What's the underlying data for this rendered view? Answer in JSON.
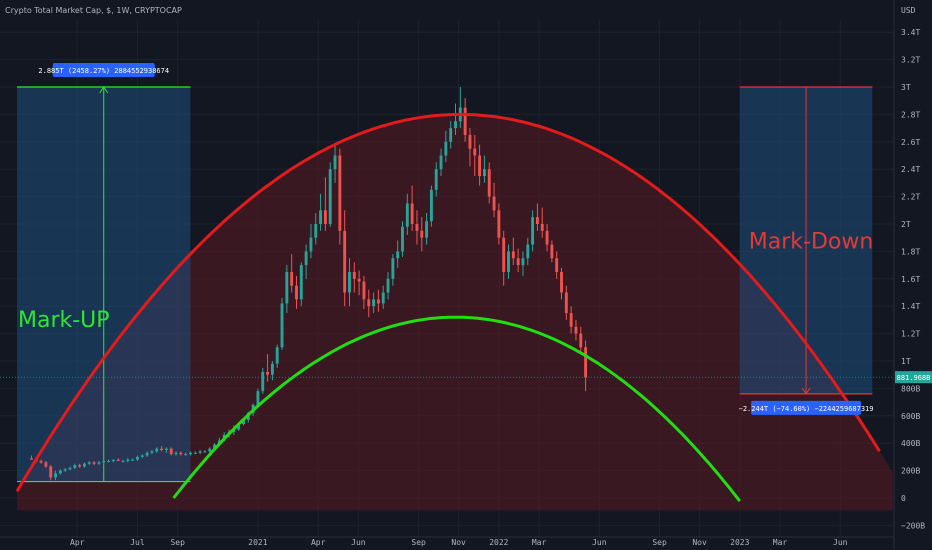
{
  "chart_data": {
    "type": "candlestick",
    "title": "Crypto Total Market Cap, $, 1W, CRYPTOCAP",
    "y_axis_unit": "USD",
    "y_ticks": [
      {
        "label": "3.4T",
        "value": 3.4
      },
      {
        "label": "3.2T",
        "value": 3.2
      },
      {
        "label": "3T",
        "value": 3.0
      },
      {
        "label": "2.8T",
        "value": 2.8
      },
      {
        "label": "2.6T",
        "value": 2.6
      },
      {
        "label": "2.4T",
        "value": 2.4
      },
      {
        "label": "2.2T",
        "value": 2.2
      },
      {
        "label": "2T",
        "value": 2.0
      },
      {
        "label": "1.8T",
        "value": 1.8
      },
      {
        "label": "1.6T",
        "value": 1.6
      },
      {
        "label": "1.4T",
        "value": 1.4
      },
      {
        "label": "1.2T",
        "value": 1.2
      },
      {
        "label": "1T",
        "value": 1.0
      },
      {
        "label": "800B",
        "value": 0.8
      },
      {
        "label": "600B",
        "value": 0.6
      },
      {
        "label": "400B",
        "value": 0.4
      },
      {
        "label": "200B",
        "value": 0.2
      },
      {
        "label": "0",
        "value": 0.0
      },
      {
        "label": "−200B",
        "value": -0.2
      }
    ],
    "x_ticks": [
      {
        "label": "Apr",
        "t": 2020.25
      },
      {
        "label": "Jul",
        "t": 2020.5
      },
      {
        "label": "Sep",
        "t": 2020.667
      },
      {
        "label": "2021",
        "t": 2021.0
      },
      {
        "label": "Apr",
        "t": 2021.25
      },
      {
        "label": "Jun",
        "t": 2021.417
      },
      {
        "label": "Sep",
        "t": 2021.667
      },
      {
        "label": "Nov",
        "t": 2021.833
      },
      {
        "label": "2022",
        "t": 2022.0
      },
      {
        "label": "Mar",
        "t": 2022.167
      },
      {
        "label": "Jun",
        "t": 2022.417
      },
      {
        "label": "Sep",
        "t": 2022.667
      },
      {
        "label": "Nov",
        "t": 2022.833
      },
      {
        "label": "2023",
        "t": 2023.0
      },
      {
        "label": "Mar",
        "t": 2023.167
      },
      {
        "label": "Jun",
        "t": 2023.417
      }
    ],
    "candles": [
      [
        2020.06,
        0.29,
        0.31,
        0.28,
        0.28
      ],
      [
        2020.08,
        0.28,
        0.29,
        0.26,
        0.27
      ],
      [
        2020.1,
        0.27,
        0.28,
        0.25,
        0.26
      ],
      [
        2020.12,
        0.26,
        0.27,
        0.22,
        0.23
      ],
      [
        2020.14,
        0.23,
        0.24,
        0.13,
        0.15
      ],
      [
        2020.16,
        0.15,
        0.2,
        0.13,
        0.18
      ],
      [
        2020.18,
        0.18,
        0.21,
        0.17,
        0.2
      ],
      [
        2020.2,
        0.2,
        0.22,
        0.19,
        0.21
      ],
      [
        2020.22,
        0.21,
        0.23,
        0.2,
        0.22
      ],
      [
        2020.24,
        0.22,
        0.25,
        0.21,
        0.24
      ],
      [
        2020.26,
        0.24,
        0.25,
        0.22,
        0.23
      ],
      [
        2020.28,
        0.23,
        0.26,
        0.22,
        0.25
      ],
      [
        2020.3,
        0.25,
        0.27,
        0.24,
        0.26
      ],
      [
        2020.32,
        0.26,
        0.27,
        0.24,
        0.25
      ],
      [
        2020.34,
        0.25,
        0.27,
        0.24,
        0.26
      ],
      [
        2020.36,
        0.26,
        0.28,
        0.25,
        0.27
      ],
      [
        2020.38,
        0.27,
        0.28,
        0.26,
        0.27
      ],
      [
        2020.4,
        0.27,
        0.28,
        0.26,
        0.28
      ],
      [
        2020.42,
        0.28,
        0.29,
        0.27,
        0.27
      ],
      [
        2020.44,
        0.27,
        0.28,
        0.26,
        0.27
      ],
      [
        2020.46,
        0.27,
        0.29,
        0.26,
        0.28
      ],
      [
        2020.48,
        0.28,
        0.29,
        0.27,
        0.28
      ],
      [
        2020.5,
        0.28,
        0.31,
        0.27,
        0.3
      ],
      [
        2020.52,
        0.3,
        0.32,
        0.29,
        0.31
      ],
      [
        2020.54,
        0.31,
        0.34,
        0.3,
        0.33
      ],
      [
        2020.56,
        0.33,
        0.35,
        0.32,
        0.34
      ],
      [
        2020.58,
        0.34,
        0.37,
        0.33,
        0.36
      ],
      [
        2020.6,
        0.36,
        0.38,
        0.34,
        0.35
      ],
      [
        2020.62,
        0.35,
        0.37,
        0.33,
        0.36
      ],
      [
        2020.64,
        0.36,
        0.37,
        0.31,
        0.32
      ],
      [
        2020.66,
        0.32,
        0.34,
        0.31,
        0.33
      ],
      [
        2020.68,
        0.33,
        0.34,
        0.31,
        0.32
      ],
      [
        2020.7,
        0.32,
        0.33,
        0.31,
        0.32
      ],
      [
        2020.72,
        0.32,
        0.34,
        0.31,
        0.33
      ],
      [
        2020.74,
        0.33,
        0.34,
        0.32,
        0.33
      ],
      [
        2020.76,
        0.33,
        0.35,
        0.32,
        0.34
      ],
      [
        2020.78,
        0.34,
        0.35,
        0.33,
        0.34
      ],
      [
        2020.8,
        0.34,
        0.37,
        0.33,
        0.36
      ],
      [
        2020.82,
        0.36,
        0.4,
        0.35,
        0.39
      ],
      [
        2020.84,
        0.39,
        0.44,
        0.38,
        0.42
      ],
      [
        2020.86,
        0.42,
        0.48,
        0.41,
        0.46
      ],
      [
        2020.88,
        0.46,
        0.5,
        0.44,
        0.48
      ],
      [
        2020.9,
        0.48,
        0.53,
        0.46,
        0.5
      ],
      [
        2020.92,
        0.5,
        0.55,
        0.49,
        0.54
      ],
      [
        2020.94,
        0.54,
        0.58,
        0.53,
        0.57
      ],
      [
        2020.96,
        0.57,
        0.63,
        0.55,
        0.62
      ],
      [
        2020.98,
        0.62,
        0.69,
        0.6,
        0.68
      ],
      [
        2021.0,
        0.68,
        0.8,
        0.66,
        0.78
      ],
      [
        2021.02,
        0.78,
        0.95,
        0.76,
        0.92
      ],
      [
        2021.04,
        0.92,
        1.05,
        0.85,
        0.9
      ],
      [
        2021.06,
        0.9,
        1.0,
        0.86,
        0.98
      ],
      [
        2021.08,
        0.98,
        1.12,
        0.95,
        1.1
      ],
      [
        2021.1,
        1.1,
        1.46,
        1.08,
        1.42
      ],
      [
        2021.12,
        1.42,
        1.7,
        1.35,
        1.65
      ],
      [
        2021.14,
        1.65,
        1.78,
        1.5,
        1.55
      ],
      [
        2021.16,
        1.55,
        1.62,
        1.38,
        1.45
      ],
      [
        2021.18,
        1.45,
        1.72,
        1.4,
        1.7
      ],
      [
        2021.2,
        1.7,
        1.85,
        1.6,
        1.8
      ],
      [
        2021.22,
        1.8,
        2.0,
        1.75,
        1.9
      ],
      [
        2021.24,
        1.9,
        2.08,
        1.85,
        2.0
      ],
      [
        2021.26,
        2.0,
        2.22,
        1.95,
        2.1
      ],
      [
        2021.28,
        2.1,
        2.34,
        1.95,
        2.0
      ],
      [
        2021.3,
        2.0,
        2.45,
        1.98,
        2.4
      ],
      [
        2021.32,
        2.4,
        2.58,
        2.3,
        2.5
      ],
      [
        2021.34,
        2.5,
        2.55,
        1.85,
        1.95
      ],
      [
        2021.36,
        1.95,
        2.1,
        1.4,
        1.5
      ],
      [
        2021.38,
        1.5,
        1.75,
        1.4,
        1.65
      ],
      [
        2021.4,
        1.65,
        1.72,
        1.5,
        1.6
      ],
      [
        2021.42,
        1.6,
        1.66,
        1.48,
        1.58
      ],
      [
        2021.44,
        1.58,
        1.62,
        1.38,
        1.45
      ],
      [
        2021.46,
        1.45,
        1.52,
        1.32,
        1.4
      ],
      [
        2021.48,
        1.4,
        1.5,
        1.35,
        1.45
      ],
      [
        2021.5,
        1.45,
        1.52,
        1.36,
        1.42
      ],
      [
        2021.52,
        1.42,
        1.55,
        1.38,
        1.5
      ],
      [
        2021.54,
        1.5,
        1.65,
        1.45,
        1.6
      ],
      [
        2021.56,
        1.6,
        1.78,
        1.55,
        1.75
      ],
      [
        2021.58,
        1.75,
        1.88,
        1.68,
        1.8
      ],
      [
        2021.6,
        1.8,
        2.02,
        1.76,
        1.98
      ],
      [
        2021.62,
        1.98,
        2.22,
        1.92,
        2.15
      ],
      [
        2021.64,
        2.15,
        2.28,
        1.95,
        2.0
      ],
      [
        2021.66,
        2.0,
        2.1,
        1.85,
        1.95
      ],
      [
        2021.68,
        1.95,
        2.05,
        1.8,
        1.9
      ],
      [
        2021.7,
        1.9,
        2.08,
        1.85,
        2.02
      ],
      [
        2021.72,
        2.02,
        2.28,
        1.98,
        2.25
      ],
      [
        2021.74,
        2.25,
        2.45,
        2.2,
        2.4
      ],
      [
        2021.76,
        2.4,
        2.55,
        2.35,
        2.5
      ],
      [
        2021.78,
        2.5,
        2.68,
        2.45,
        2.6
      ],
      [
        2021.8,
        2.6,
        2.75,
        2.55,
        2.7
      ],
      [
        2021.82,
        2.7,
        2.88,
        2.65,
        2.75
      ],
      [
        2021.84,
        2.75,
        3.0,
        2.7,
        2.85
      ],
      [
        2021.86,
        2.85,
        2.92,
        2.6,
        2.65
      ],
      [
        2021.88,
        2.65,
        2.7,
        2.42,
        2.55
      ],
      [
        2021.9,
        2.55,
        2.65,
        2.35,
        2.5
      ],
      [
        2021.92,
        2.5,
        2.58,
        2.28,
        2.35
      ],
      [
        2021.94,
        2.35,
        2.5,
        2.3,
        2.4
      ],
      [
        2021.96,
        2.4,
        2.45,
        2.15,
        2.2
      ],
      [
        2021.98,
        2.2,
        2.3,
        2.05,
        2.1
      ],
      [
        2022.0,
        2.1,
        2.15,
        1.85,
        1.9
      ],
      [
        2022.02,
        1.9,
        1.95,
        1.55,
        1.65
      ],
      [
        2022.04,
        1.65,
        1.85,
        1.6,
        1.8
      ],
      [
        2022.06,
        1.8,
        1.9,
        1.7,
        1.75
      ],
      [
        2022.08,
        1.75,
        1.82,
        1.65,
        1.7
      ],
      [
        2022.1,
        1.7,
        1.8,
        1.62,
        1.75
      ],
      [
        2022.12,
        1.75,
        1.9,
        1.7,
        1.85
      ],
      [
        2022.14,
        1.85,
        2.1,
        1.8,
        2.05
      ],
      [
        2022.16,
        2.05,
        2.15,
        1.95,
        2.0
      ],
      [
        2022.18,
        2.0,
        2.12,
        1.9,
        1.95
      ],
      [
        2022.2,
        1.95,
        2.0,
        1.8,
        1.85
      ],
      [
        2022.22,
        1.85,
        1.88,
        1.72,
        1.75
      ],
      [
        2022.24,
        1.75,
        1.8,
        1.6,
        1.65
      ],
      [
        2022.26,
        1.65,
        1.68,
        1.45,
        1.5
      ],
      [
        2022.28,
        1.5,
        1.55,
        1.3,
        1.35
      ],
      [
        2022.3,
        1.35,
        1.4,
        1.2,
        1.25
      ],
      [
        2022.32,
        1.25,
        1.3,
        1.15,
        1.2
      ],
      [
        2022.34,
        1.2,
        1.25,
        1.05,
        1.1
      ],
      [
        2022.36,
        1.1,
        1.15,
        0.78,
        0.88
      ]
    ],
    "curves": [
      {
        "name": "red-arc",
        "color": "#e31b1b",
        "type": "parabola",
        "points": [
          [
            2020.0,
            0.05
          ],
          [
            2021.84,
            2.8
          ],
          [
            2023.58,
            0.05
          ]
        ]
      },
      {
        "name": "green-arc",
        "color": "#22dd11",
        "type": "parabola",
        "points": [
          [
            2020.65,
            0.0
          ],
          [
            2021.82,
            1.32
          ],
          [
            2023.0,
            0.0
          ]
        ]
      }
    ],
    "boxes": [
      {
        "name": "mark-up",
        "label": "Mark-UP",
        "t0": 2020.0,
        "t1": 2020.72,
        "v0": 0.12,
        "v1": 3.0,
        "measure": "2.885T (2458.27%) 2884552938674"
      },
      {
        "name": "mark-down",
        "label": "Mark-Down",
        "t0": 2023.0,
        "t1": 2023.55,
        "v0": 0.76,
        "v1": 3.0,
        "measure": "−2.244T (−74.60%) −2244259687319"
      }
    ],
    "last_price": {
      "label": "881.968B",
      "value": 0.882
    },
    "colors": {
      "bull": "#26a69a",
      "bear": "#ef5350",
      "background": "#131722",
      "box_fill": "#1e4f7e",
      "zone_fill": "#5a1a22"
    }
  }
}
